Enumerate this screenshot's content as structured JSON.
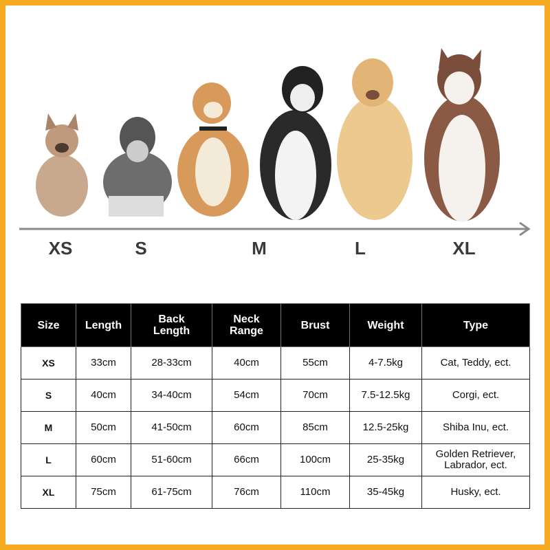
{
  "sizes": [
    "XS",
    "S",
    "M",
    "L",
    "XL"
  ],
  "colors": {
    "border": "#f6a81e",
    "header_bg": "#000000",
    "arrow": "#8a8a8a"
  },
  "images": [
    "french-bulldog",
    "schnauzer",
    "shiba-inu",
    "husky-black",
    "golden-retriever",
    "husky-brown"
  ],
  "table": {
    "headers": [
      "Size",
      "Length",
      "Back\nLength",
      "Neck\nRange",
      "Brust",
      "Weight",
      "Type"
    ],
    "rows": [
      [
        "XS",
        "33cm",
        "28-33cm",
        "40cm",
        "55cm",
        "4-7.5kg",
        "Cat, Teddy, ect."
      ],
      [
        "S",
        "40cm",
        "34-40cm",
        "54cm",
        "70cm",
        "7.5-12.5kg",
        "Corgi, ect."
      ],
      [
        "M",
        "50cm",
        "41-50cm",
        "60cm",
        "85cm",
        "12.5-25kg",
        "Shiba Inu, ect."
      ],
      [
        "L",
        "60cm",
        "51-60cm",
        "66cm",
        "100cm",
        "25-35kg",
        "Golden Retriever,\nLabrador, ect."
      ],
      [
        "XL",
        "75cm",
        "61-75cm",
        "76cm",
        "110cm",
        "35-45kg",
        "Husky, ect."
      ]
    ]
  }
}
